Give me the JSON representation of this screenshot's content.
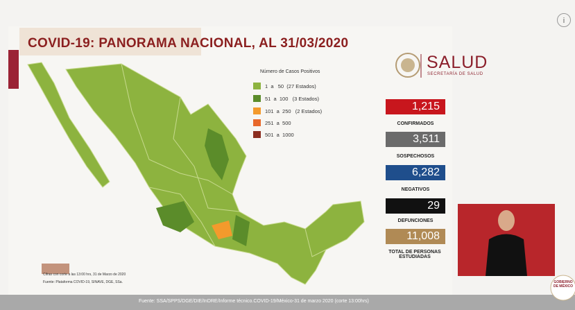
{
  "header": {
    "title": "COVID-19: PANORAMA NACIONAL, AL 31/03/2020"
  },
  "logo": {
    "name": "SALUD",
    "subtitle": "SECRETARÍA DE SALUD"
  },
  "legend": {
    "title": "Número de Casos Positivos",
    "entries": [
      "1  a   50  (27 Estados)",
      "51  a  100   (3 Estados)",
      "101  a  250   (2 Estados)",
      "251  a  500",
      "501  a  1000"
    ]
  },
  "stats": [
    {
      "value": "1,215",
      "label": "CONFIRMADOS"
    },
    {
      "value": "3,511",
      "label": "SOSPECHOSOS"
    },
    {
      "value": "6,282",
      "label": "NEGATIVOS"
    },
    {
      "value": "29",
      "label": "DEFUNCIONES"
    },
    {
      "value": "11,008",
      "label": "TOTAL DE PERSONAS ESTUDIADAS"
    }
  ],
  "notes": [
    "Cifras con corte a las 13:00 hrs, 31 de Marzo de 2020",
    "Fuente: Plataforma COVID-19, SINAVE, DGE, SSa."
  ],
  "footer": {
    "source": "Fuente: SSA/SPPS/DGE/DIE/InDRE/Informe técnico.COVID-19/México-31 de marzo 2020 (corte 13:00hrs)",
    "badge": "GOBIERNO DE MÉXICO"
  },
  "info_button": "i"
}
